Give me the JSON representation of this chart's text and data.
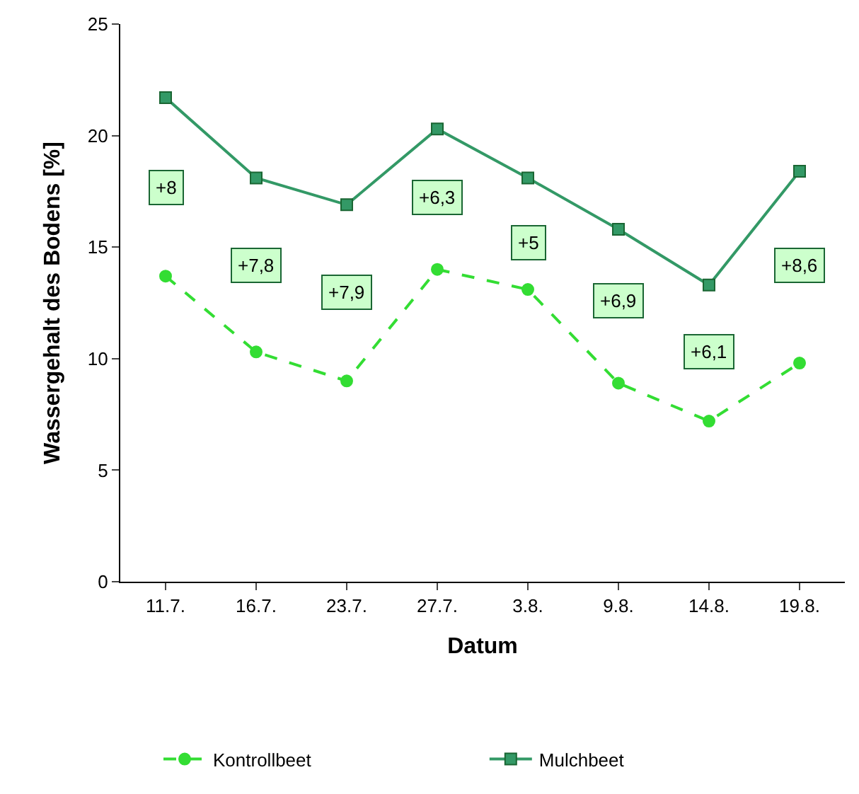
{
  "chart_data": {
    "type": "line",
    "xlabel": "Datum",
    "ylabel": "Wassergehalt des Bodens [%]",
    "categories": [
      "11.7.",
      "16.7.",
      "23.7.",
      "27.7.",
      "3.8.",
      "9.8.",
      "14.8.",
      "19.8."
    ],
    "series": [
      {
        "name": "Kontrollbeet",
        "color": "#33dd33",
        "marker": "circle",
        "line_style": "dashed",
        "values": [
          13.7,
          10.3,
          9.0,
          14.0,
          13.1,
          8.9,
          7.2,
          9.8
        ]
      },
      {
        "name": "Mulchbeet",
        "color": "#339966",
        "marker": "square",
        "line_style": "solid",
        "values": [
          21.7,
          18.1,
          16.9,
          20.3,
          18.1,
          15.8,
          13.3,
          18.4
        ]
      }
    ],
    "ylim": [
      0,
      25
    ],
    "yticks": [
      0,
      5,
      10,
      15,
      20,
      25
    ],
    "legend": "bottom",
    "annotations": [
      {
        "text": "+8",
        "x": "11.7.",
        "y": 17.7
      },
      {
        "text": "+7,8",
        "x": "16.7.",
        "y": 14.2
      },
      {
        "text": "+7,9",
        "x": "23.7.",
        "y": 13.0
      },
      {
        "text": "+6,3",
        "x": "27.7.",
        "y": 17.2
      },
      {
        "text": "+5",
        "x": "3.8.",
        "y": 15.2
      },
      {
        "text": "+6,9",
        "x": "9.8.",
        "y": 12.6
      },
      {
        "text": "+6,1",
        "x": "14.8.",
        "y": 10.3
      },
      {
        "text": "+8,6",
        "x": "19.8.",
        "y": 14.2
      }
    ]
  }
}
